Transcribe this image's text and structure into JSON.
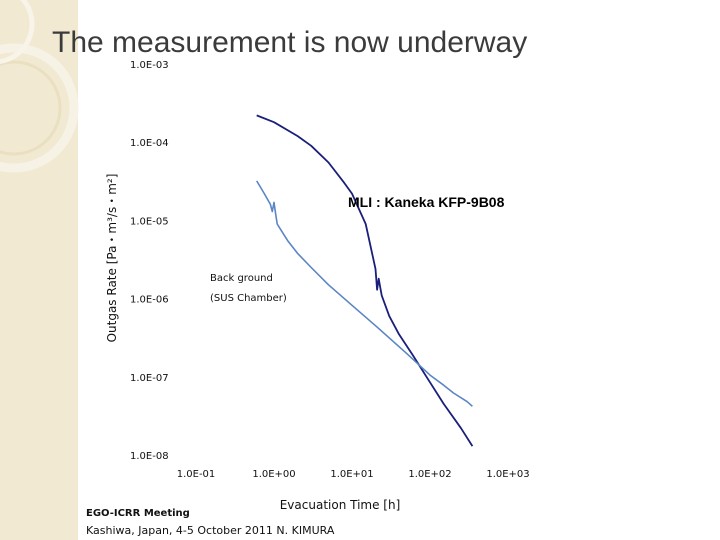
{
  "slide": {
    "title": "The measurement is now underway",
    "footer_line1": "EGO-ICRR Meeting",
    "footer_line2": "Kashiwa, Japan, 4-5 October 2011 N. KIMURA"
  },
  "colors": {
    "band": "#f1e9d2",
    "mli_series": "#1a1f7a",
    "background_series": "#5b86c4"
  },
  "chart_data": {
    "type": "line",
    "title": "",
    "xlabel": "Evacuation Time  [h]",
    "ylabel": "Outgas Rate  [Pa・m³/s・m²]",
    "x_scale": "log",
    "y_scale": "log",
    "xlim": [
      0.1,
      1000
    ],
    "ylim": [
      1e-08,
      0.001
    ],
    "x_ticks": [
      {
        "value": 0.1,
        "label": "1.0E-01"
      },
      {
        "value": 1,
        "label": "1.0E+00"
      },
      {
        "value": 10,
        "label": "1.0E+01"
      },
      {
        "value": 100,
        "label": "1.0E+02"
      },
      {
        "value": 1000,
        "label": "1.0E+03"
      }
    ],
    "y_ticks": [
      {
        "value": 0.001,
        "label": "1.0E-03"
      },
      {
        "value": 0.0001,
        "label": "1.0E-04"
      },
      {
        "value": 1e-05,
        "label": "1.0E-05"
      },
      {
        "value": 1e-06,
        "label": "1.0E-06"
      },
      {
        "value": 1e-07,
        "label": "1.0E-07"
      },
      {
        "value": 1e-08,
        "label": "1.0E-08"
      }
    ],
    "series": [
      {
        "name": "MLI : Kaneka KFP-9B08",
        "x": [
          0.6,
          1.0,
          2.0,
          3.0,
          5.0,
          8.0,
          10.0,
          15.0,
          20.0,
          21.0,
          22.0,
          23.0,
          24.0,
          30.0,
          40.0,
          60.0,
          100.0,
          150.0,
          250.0,
          350.0
        ],
        "y": [
          0.00022,
          0.00018,
          0.00012,
          9e-05,
          5.5e-05,
          3e-05,
          2.2e-05,
          9e-06,
          2.4e-06,
          1.3e-06,
          1.8e-06,
          1.4e-06,
          1.1e-06,
          6e-07,
          3.5e-07,
          1.9e-07,
          8.5e-08,
          4.5e-08,
          2.2e-08,
          1.3e-08
        ]
      },
      {
        "name": "Back ground (SUS Chamber)",
        "x": [
          0.6,
          0.75,
          0.9,
          0.95,
          1.0,
          1.05,
          1.1,
          1.2,
          1.5,
          2.0,
          3.0,
          5.0,
          10.0,
          20.0,
          50.0,
          100.0,
          150.0,
          200.0,
          300.0,
          350.0
        ],
        "y": [
          3.2e-05,
          2.2e-05,
          1.6e-05,
          1.3e-05,
          1.7e-05,
          1.2e-05,
          9e-06,
          7.8e-06,
          5.5e-06,
          3.8e-06,
          2.5e-06,
          1.5e-06,
          8.2e-07,
          4.5e-07,
          2e-07,
          1.05e-07,
          7.8e-08,
          6.2e-08,
          4.8e-08,
          4.2e-08
        ]
      }
    ],
    "annotations": [
      {
        "text": "MLI : Kaneka KFP-9B08",
        "series": 0
      },
      {
        "text": "Back ground",
        "series": 1
      },
      {
        "text": "(SUS Chamber)",
        "series": 1
      }
    ]
  }
}
